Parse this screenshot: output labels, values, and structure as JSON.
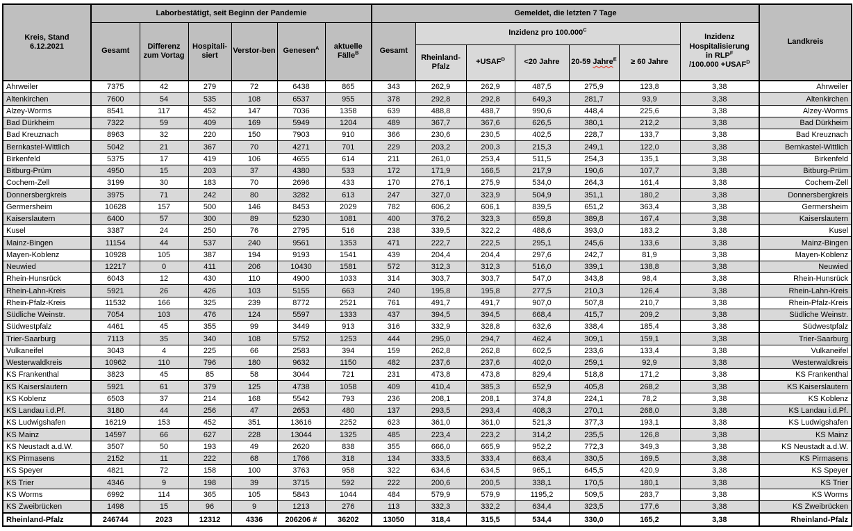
{
  "table": {
    "corner": {
      "line1": "Kreis, Stand",
      "line2": "6.12.2021"
    },
    "groups": {
      "labor": "Laborbestätigt, seit Beginn der Pandemie",
      "gemeldet": "Gemeldet, die letzten 7 Tage",
      "inzidenz": {
        "text": "Inzidenz pro 100.000",
        "sup": "C"
      }
    },
    "headers": {
      "gesamt1": "Gesamt",
      "differenz": "Differenz zum Vortag",
      "hospitalisiert": "Hospitali-siert",
      "verstorben": "Verstor-ben",
      "genesen": {
        "text": "Genesen",
        "sup": "A"
      },
      "aktuelle": {
        "text": "aktuelle Fälle",
        "sup": "B"
      },
      "gesamt2": "Gesamt",
      "rlp": "Rheinland-Pfalz",
      "usaf": {
        "text": "+USAF",
        "sup": "D"
      },
      "u20": "<20 Jahre",
      "j2059": {
        "prefix": "20-59 ",
        "wavy": "Jahre",
        "sup": "E"
      },
      "o60": "≥ 60 Jahre",
      "hosp_inz": {
        "line1": "Inzidenz",
        "line2": "Hospitalisierung",
        "line3": "in RLP",
        "sup3": "F",
        "line4": "/100.000 +USAF",
        "sup4": "D"
      },
      "landkreis": "Landkreis"
    },
    "rows": [
      [
        "Ahrweiler",
        "7375",
        "42",
        "279",
        "72",
        "6438",
        "865",
        "343",
        "262,9",
        "262,9",
        "487,5",
        "275,9",
        "123,8",
        "3,38"
      ],
      [
        "Altenkirchen",
        "7600",
        "54",
        "535",
        "108",
        "6537",
        "955",
        "378",
        "292,8",
        "292,8",
        "649,3",
        "281,7",
        "93,9",
        "3,38"
      ],
      [
        "Alzey-Worms",
        "8541",
        "117",
        "452",
        "147",
        "7036",
        "1358",
        "639",
        "488,8",
        "488,7",
        "990,6",
        "448,4",
        "225,6",
        "3,38"
      ],
      [
        "Bad Dürkheim",
        "7322",
        "59",
        "409",
        "169",
        "5949",
        "1204",
        "489",
        "367,7",
        "367,6",
        "626,5",
        "380,1",
        "212,2",
        "3,38"
      ],
      [
        "Bad Kreuznach",
        "8963",
        "32",
        "220",
        "150",
        "7903",
        "910",
        "366",
        "230,6",
        "230,5",
        "402,5",
        "228,7",
        "133,7",
        "3,38"
      ],
      [
        "Bernkastel-Wittlich",
        "5042",
        "21",
        "367",
        "70",
        "4271",
        "701",
        "229",
        "203,2",
        "200,3",
        "215,3",
        "249,1",
        "122,0",
        "3,38"
      ],
      [
        "Birkenfeld",
        "5375",
        "17",
        "419",
        "106",
        "4655",
        "614",
        "211",
        "261,0",
        "253,4",
        "511,5",
        "254,3",
        "135,1",
        "3,38"
      ],
      [
        "Bitburg-Prüm",
        "4950",
        "15",
        "203",
        "37",
        "4380",
        "533",
        "172",
        "171,9",
        "166,5",
        "217,9",
        "190,6",
        "107,7",
        "3,38"
      ],
      [
        "Cochem-Zell",
        "3199",
        "30",
        "183",
        "70",
        "2696",
        "433",
        "170",
        "276,1",
        "275,9",
        "534,0",
        "264,3",
        "161,4",
        "3,38"
      ],
      [
        "Donnersbergkreis",
        "3975",
        "71",
        "242",
        "80",
        "3282",
        "613",
        "247",
        "327,0",
        "323,9",
        "504,9",
        "351,1",
        "180,2",
        "3,38"
      ],
      [
        "Germersheim",
        "10628",
        "157",
        "500",
        "146",
        "8453",
        "2029",
        "782",
        "606,2",
        "606,1",
        "839,5",
        "651,2",
        "363,4",
        "3,38"
      ],
      [
        "Kaiserslautern",
        "6400",
        "57",
        "300",
        "89",
        "5230",
        "1081",
        "400",
        "376,2",
        "323,3",
        "659,8",
        "389,8",
        "167,4",
        "3,38"
      ],
      [
        "Kusel",
        "3387",
        "24",
        "250",
        "76",
        "2795",
        "516",
        "238",
        "339,5",
        "322,2",
        "488,6",
        "393,0",
        "183,2",
        "3,38"
      ],
      [
        "Mainz-Bingen",
        "11154",
        "44",
        "537",
        "240",
        "9561",
        "1353",
        "471",
        "222,7",
        "222,5",
        "295,1",
        "245,6",
        "133,6",
        "3,38"
      ],
      [
        "Mayen-Koblenz",
        "10928",
        "105",
        "387",
        "194",
        "9193",
        "1541",
        "439",
        "204,4",
        "204,4",
        "297,6",
        "242,7",
        "81,9",
        "3,38"
      ],
      [
        "Neuwied",
        "12217",
        "0",
        "411",
        "206",
        "10430",
        "1581",
        "572",
        "312,3",
        "312,3",
        "516,0",
        "339,1",
        "138,8",
        "3,38"
      ],
      [
        "Rhein-Hunsrück",
        "6043",
        "12",
        "430",
        "110",
        "4900",
        "1033",
        "314",
        "303,7",
        "303,7",
        "547,0",
        "343,8",
        "98,4",
        "3,38"
      ],
      [
        "Rhein-Lahn-Kreis",
        "5921",
        "26",
        "426",
        "103",
        "5155",
        "663",
        "240",
        "195,8",
        "195,8",
        "277,5",
        "210,3",
        "126,4",
        "3,38"
      ],
      [
        "Rhein-Pfalz-Kreis",
        "11532",
        "166",
        "325",
        "239",
        "8772",
        "2521",
        "761",
        "491,7",
        "491,7",
        "907,0",
        "507,8",
        "210,7",
        "3,38"
      ],
      [
        "Südliche Weinstr.",
        "7054",
        "103",
        "476",
        "124",
        "5597",
        "1333",
        "437",
        "394,5",
        "394,5",
        "668,4",
        "415,7",
        "209,2",
        "3,38"
      ],
      [
        "Südwestpfalz",
        "4461",
        "45",
        "355",
        "99",
        "3449",
        "913",
        "316",
        "332,9",
        "328,8",
        "632,6",
        "338,4",
        "185,4",
        "3,38"
      ],
      [
        "Trier-Saarburg",
        "7113",
        "35",
        "340",
        "108",
        "5752",
        "1253",
        "444",
        "295,0",
        "294,7",
        "462,4",
        "309,1",
        "159,1",
        "3,38"
      ],
      [
        "Vulkaneifel",
        "3043",
        "4",
        "225",
        "66",
        "2583",
        "394",
        "159",
        "262,8",
        "262,8",
        "602,5",
        "233,6",
        "133,4",
        "3,38"
      ],
      [
        "Westerwaldkreis",
        "10962",
        "110",
        "796",
        "180",
        "9632",
        "1150",
        "482",
        "237,6",
        "237,6",
        "402,0",
        "259,1",
        "92,9",
        "3,38"
      ],
      [
        "KS Frankenthal",
        "3823",
        "45",
        "85",
        "58",
        "3044",
        "721",
        "231",
        "473,8",
        "473,8",
        "829,4",
        "518,8",
        "171,2",
        "3,38"
      ],
      [
        "KS Kaiserslautern",
        "5921",
        "61",
        "379",
        "125",
        "4738",
        "1058",
        "409",
        "410,4",
        "385,3",
        "652,9",
        "405,8",
        "268,2",
        "3,38"
      ],
      [
        "KS Koblenz",
        "6503",
        "37",
        "214",
        "168",
        "5542",
        "793",
        "236",
        "208,1",
        "208,1",
        "374,8",
        "224,1",
        "78,2",
        "3,38"
      ],
      [
        "KS Landau i.d.Pf.",
        "3180",
        "44",
        "256",
        "47",
        "2653",
        "480",
        "137",
        "293,5",
        "293,4",
        "408,3",
        "270,1",
        "268,0",
        "3,38"
      ],
      [
        "KS Ludwigshafen",
        "16219",
        "153",
        "452",
        "351",
        "13616",
        "2252",
        "623",
        "361,0",
        "361,0",
        "521,3",
        "377,3",
        "193,1",
        "3,38"
      ],
      [
        "KS Mainz",
        "14597",
        "66",
        "627",
        "228",
        "13044",
        "1325",
        "485",
        "223,4",
        "223,2",
        "314,2",
        "235,5",
        "126,8",
        "3,38"
      ],
      [
        "KS Neustadt a.d.W.",
        "3507",
        "50",
        "193",
        "49",
        "2620",
        "838",
        "355",
        "666,0",
        "665,9",
        "952,2",
        "772,3",
        "349,3",
        "3,38"
      ],
      [
        "KS Pirmasens",
        "2152",
        "11",
        "222",
        "68",
        "1766",
        "318",
        "134",
        "333,5",
        "333,4",
        "663,4",
        "330,5",
        "169,5",
        "3,38"
      ],
      [
        "KS Speyer",
        "4821",
        "72",
        "158",
        "100",
        "3763",
        "958",
        "322",
        "634,6",
        "634,5",
        "965,1",
        "645,5",
        "420,9",
        "3,38"
      ],
      [
        "KS Trier",
        "4346",
        "9",
        "198",
        "39",
        "3715",
        "592",
        "222",
        "200,6",
        "200,5",
        "338,1",
        "170,5",
        "180,1",
        "3,38"
      ],
      [
        "KS Worms",
        "6992",
        "114",
        "365",
        "105",
        "5843",
        "1044",
        "484",
        "579,9",
        "579,9",
        "1195,2",
        "509,5",
        "283,7",
        "3,38"
      ],
      [
        "KS Zweibrücken",
        "1498",
        "15",
        "96",
        "9",
        "1213",
        "276",
        "113",
        "332,3",
        "332,2",
        "634,4",
        "323,5",
        "177,6",
        "3,38"
      ]
    ],
    "total": [
      "Rheinland-Pfalz",
      "246744",
      "2023",
      "12312",
      "4336",
      "206206 #",
      "36202",
      "13050",
      "318,4",
      "315,5",
      "534,4",
      "330,0",
      "165,2",
      "3,38"
    ]
  }
}
